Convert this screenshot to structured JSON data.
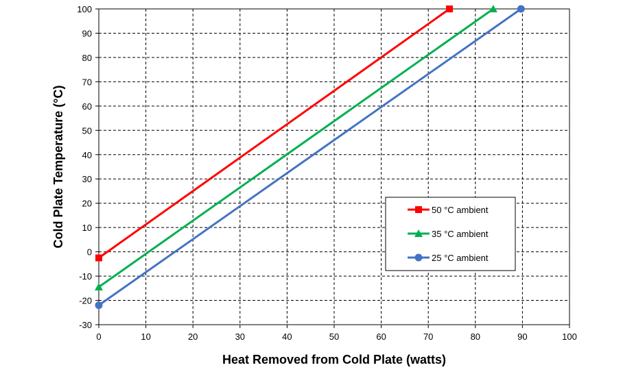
{
  "chart_data": {
    "type": "line",
    "xlabel": "Heat Removed from Cold Plate (watts)",
    "ylabel": "Cold Plate Temperature (°C)",
    "xlim": [
      0,
      100
    ],
    "ylim": [
      -30,
      100
    ],
    "xticks": [
      0,
      10,
      20,
      30,
      40,
      50,
      60,
      70,
      80,
      90,
      100
    ],
    "yticks": [
      -30,
      -20,
      -10,
      0,
      10,
      20,
      30,
      40,
      50,
      60,
      70,
      80,
      90,
      100
    ],
    "ytick_labels": [
      "-30",
      "-20",
      "-10",
      "0",
      "10",
      "20",
      "30",
      "40",
      "50",
      "60",
      "70",
      "80",
      "90",
      "100"
    ],
    "grid": true,
    "legend_position": "lower-right",
    "series": [
      {
        "name": "50 °C ambient",
        "color": "#ff0000",
        "marker": "square",
        "x": [
          0,
          74.5
        ],
        "y": [
          -2.5,
          100
        ]
      },
      {
        "name": "35 °C ambient",
        "color": "#00b050",
        "marker": "triangle",
        "x": [
          0,
          83.8
        ],
        "y": [
          -14.5,
          100
        ]
      },
      {
        "name": "25 °C ambient",
        "color": "#4472c4",
        "marker": "circle",
        "x": [
          0,
          89.7
        ],
        "y": [
          -22,
          100
        ]
      }
    ]
  }
}
